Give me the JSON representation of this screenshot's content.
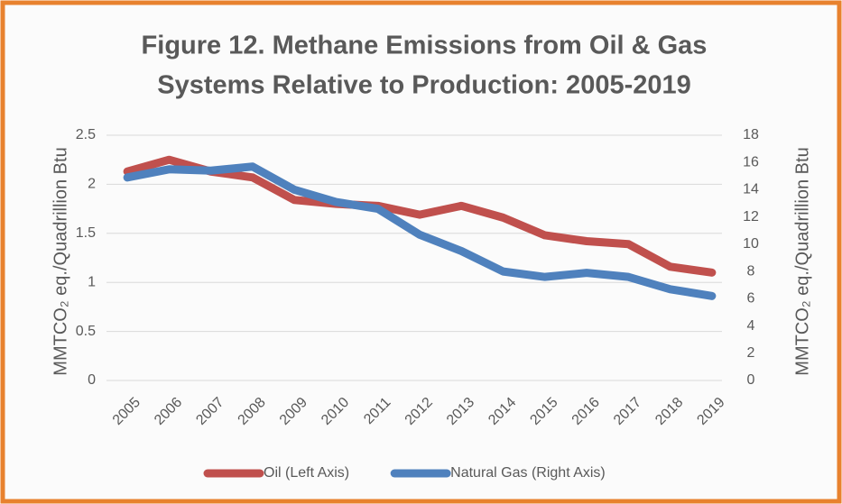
{
  "chart_data": {
    "type": "line",
    "title": [
      "Figure 12. Methane Emissions from Oil & Gas",
      "Systems Relative to Production:  2005-2019"
    ],
    "ylabel": "MMTCO₂ eq./Quadrillion Btu",
    "y2label": "MMTCO₂ eq./Quadrillion Btu",
    "categories": [
      "2005",
      "2006",
      "2007",
      "2008",
      "2009",
      "2010",
      "2011",
      "2012",
      "2013",
      "2014",
      "2015",
      "2016",
      "2017",
      "2018",
      "2019"
    ],
    "series": [
      {
        "name": "Oil (Left Axis)",
        "color": "#c0504d",
        "axis": "y",
        "values": [
          2.13,
          2.25,
          2.13,
          2.07,
          1.84,
          1.8,
          1.78,
          1.69,
          1.78,
          1.66,
          1.48,
          1.42,
          1.39,
          1.16,
          1.1
        ]
      },
      {
        "name": "Natural Gas (Right Axis)",
        "color": "#4f81bd",
        "axis": "y2",
        "values": [
          14.9,
          15.5,
          15.4,
          15.7,
          14.0,
          13.1,
          12.6,
          10.7,
          9.5,
          8.0,
          7.6,
          7.9,
          7.6,
          6.7,
          6.2
        ]
      }
    ],
    "ylim": [
      0,
      2.5
    ],
    "yticks": [
      0,
      0.5,
      1,
      1.5,
      2,
      2.5
    ],
    "y2lim": [
      0,
      18
    ],
    "y2ticks": [
      0,
      2,
      4,
      6,
      8,
      10,
      12,
      14,
      16,
      18
    ],
    "grid": true,
    "legend": "bottom"
  }
}
